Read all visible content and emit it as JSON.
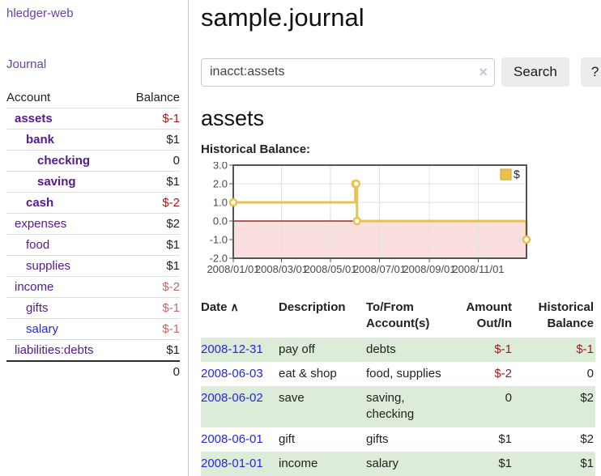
{
  "icons": {
    "sort_asc": "∧",
    "clear": "×"
  },
  "sidebar": {
    "brand": "hledger-web",
    "journal_link": "Journal",
    "accounts_table": {
      "headers": {
        "account": "Account",
        "balance": "Balance"
      },
      "rows": [
        {
          "name": "assets",
          "balance": "$-1"
        },
        {
          "name": "bank",
          "balance": "$1"
        },
        {
          "name": "checking",
          "balance": "0"
        },
        {
          "name": "saving",
          "balance": "$1"
        },
        {
          "name": "cash",
          "balance": "$-2"
        },
        {
          "name": "expenses",
          "balance": "$2"
        },
        {
          "name": "food",
          "balance": "$1"
        },
        {
          "name": "supplies",
          "balance": "$1"
        },
        {
          "name": "income",
          "balance": "$-2"
        },
        {
          "name": "gifts",
          "balance": "$-1"
        },
        {
          "name": "salary",
          "balance": "$-1"
        },
        {
          "name": "liabilities:debts",
          "balance": "$1"
        }
      ],
      "total": "0"
    }
  },
  "header": {
    "title": "sample.journal"
  },
  "search": {
    "value": "inacct:assets",
    "button_label": "Search",
    "help_label": "?"
  },
  "account_page": {
    "heading": "assets",
    "chart_label": "Historical Balance:"
  },
  "chart_data": {
    "type": "line",
    "title": "Historical Balance:",
    "legend": "$",
    "legend_position": "top-right",
    "grid": true,
    "ylim": [
      -2,
      3
    ],
    "y_ticks": [
      "3.0",
      "2.0",
      "1.0",
      "0.0",
      "-1.0",
      "-2.0"
    ],
    "x_range": [
      "2008/01/01",
      "2008/12/31"
    ],
    "x_ticks": [
      "2008/01/01",
      "2008/03/01",
      "2008/05/01",
      "2008/07/01",
      "2008/09/01",
      "2008/11/01"
    ],
    "series": [
      {
        "name": "$",
        "color": "#e8c24a",
        "step": true,
        "points": [
          [
            "2008/01/01",
            1
          ],
          [
            "2008/06/01",
            2
          ],
          [
            "2008/06/02",
            2
          ],
          [
            "2008/06/03",
            0
          ],
          [
            "2008/12/31",
            -1
          ]
        ]
      }
    ],
    "colors": {
      "negative_region": "#fbdede",
      "zero_line": "#8b0000",
      "grid": "#e2e2e2",
      "border": "#545454",
      "legend_swatch_border": "#c7a52f"
    }
  },
  "register_table": {
    "headers": {
      "date": "Date",
      "description": "Description",
      "tofrom": "To/From Account(s)",
      "amount": "Amount Out/In",
      "balance": "Historical Balance"
    },
    "rows": [
      {
        "date": "2008-12-31",
        "description": "pay off",
        "accounts": "debts",
        "amount": "$-1",
        "balance": "$-1"
      },
      {
        "date": "2008-06-03",
        "description": "eat & shop",
        "accounts": "food, supplies",
        "amount": "$-2",
        "balance": "0"
      },
      {
        "date": "2008-06-02",
        "description": "save",
        "accounts": "saving, checking",
        "amount": "0",
        "balance": "$2"
      },
      {
        "date": "2008-06-01",
        "description": "gift",
        "accounts": "gifts",
        "amount": "$1",
        "balance": "$2"
      },
      {
        "date": "2008-01-01",
        "description": "income",
        "accounts": "salary",
        "amount": "$1",
        "balance": "$1"
      }
    ]
  }
}
